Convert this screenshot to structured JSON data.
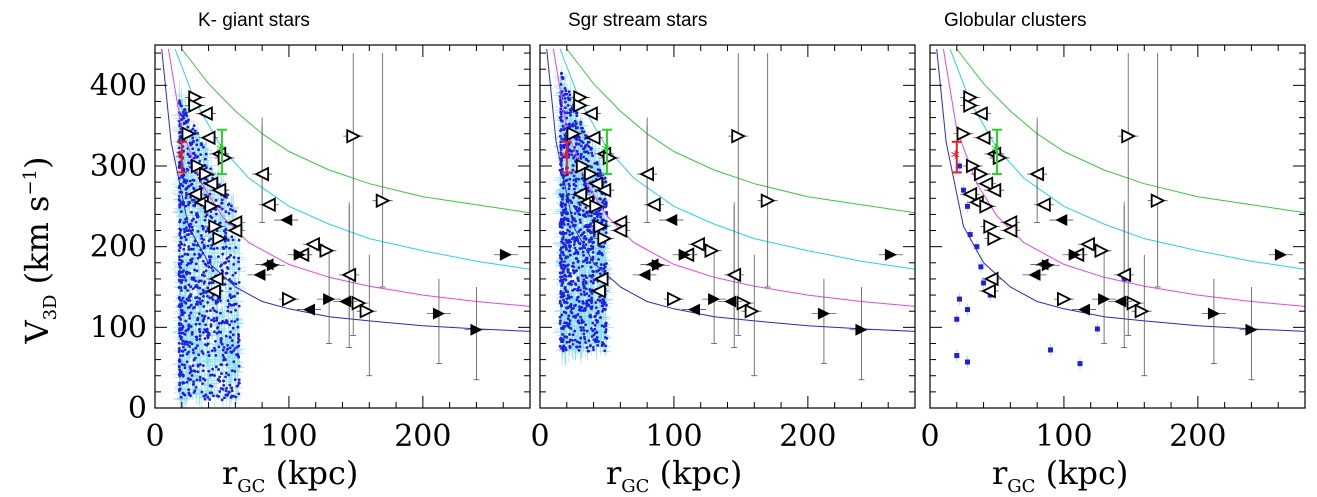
{
  "figure": {
    "ylabel_main": "V",
    "ylabel_sub": "3D",
    "ylabel_units": " (km s",
    "ylabel_exp": "−1",
    "ylabel_close": ")",
    "xlabel_main": "r",
    "xlabel_sub": "GC",
    "xlabel_units": " (kpc)"
  },
  "colors": {
    "curve_green": "#3cc83c",
    "curve_cyan": "#28d2e6",
    "curve_magenta": "#e646e6",
    "curve_blue": "#2828c8",
    "dot_blue": "#1e1ee6",
    "error_cyan": "#8cdceb",
    "marker_red": "#e61e28",
    "marker_green": "#28d228",
    "frame": "#000000"
  },
  "chart_data": [
    {
      "type": "scatter",
      "title": "K- giant stars",
      "xlabel": "r_GC (kpc)",
      "ylabel": "V_3D (km s^-1)",
      "xlim": [
        0,
        280
      ],
      "ylim": [
        0,
        450
      ],
      "xticks": [
        "0",
        "100",
        "200"
      ],
      "yticks": [
        "0",
        "100",
        "200",
        "300",
        "400"
      ],
      "grid": false,
      "scatter_cloud": "K-giant",
      "xticks_values": [
        0,
        100,
        200
      ],
      "yticks_values": [
        0,
        100,
        200,
        300,
        400
      ]
    },
    {
      "type": "scatter",
      "title": "Sgr stream stars",
      "xlabel": "r_GC (kpc)",
      "ylabel": "V_3D (km s^-1)",
      "xlim": [
        0,
        280
      ],
      "ylim": [
        0,
        450
      ],
      "xticks": [
        "0",
        "100",
        "200"
      ],
      "yticks": [
        "0",
        "100",
        "200",
        "300",
        "400"
      ],
      "grid": false,
      "scatter_cloud": "Sgr",
      "xticks_values": [
        0,
        100,
        200
      ],
      "yticks_values": [
        0,
        100,
        200,
        300,
        400
      ]
    },
    {
      "type": "scatter",
      "title": "Globular clusters",
      "xlabel": "r_GC (kpc)",
      "ylabel": "V_3D (km s^-1)",
      "xlim": [
        0,
        280
      ],
      "ylim": [
        0,
        450
      ],
      "xticks": [
        "0",
        "100",
        "200"
      ],
      "yticks": [
        "0",
        "100",
        "200",
        "300",
        "400"
      ],
      "grid": false,
      "scatter_cloud": "GC",
      "xticks_values": [
        0,
        100,
        200
      ],
      "yticks_values": [
        0,
        100,
        200,
        300,
        400
      ]
    }
  ],
  "shared_series": {
    "escape_curves": [
      {
        "color_key": "curve_green",
        "r": [
          20,
          40,
          60,
          80,
          100,
          130,
          160,
          200,
          240,
          280
        ],
        "v": [
          445,
          402,
          368,
          340,
          318,
          295,
          278,
          262,
          252,
          242
        ]
      },
      {
        "color_key": "curve_cyan",
        "r": [
          15,
          30,
          50,
          70,
          100,
          130,
          160,
          200,
          240,
          280
        ],
        "v": [
          445,
          380,
          322,
          285,
          250,
          228,
          210,
          195,
          182,
          172
        ]
      },
      {
        "color_key": "curve_magenta",
        "r": [
          10,
          20,
          35,
          50,
          70,
          100,
          130,
          160,
          200,
          240,
          280
        ],
        "v": [
          445,
          345,
          278,
          238,
          205,
          178,
          162,
          151,
          140,
          132,
          126
        ]
      },
      {
        "color_key": "curve_blue",
        "r": [
          5,
          12,
          25,
          40,
          60,
          80,
          100,
          130,
          160,
          200,
          240,
          280
        ],
        "v": [
          445,
          330,
          225,
          180,
          150,
          132,
          123,
          113,
          108,
          102,
          98,
          95
        ]
      }
    ],
    "red_point": {
      "r": 20,
      "v": 312,
      "err_low": 292,
      "err_high": 330
    },
    "green_point": {
      "r": 50,
      "v": 320,
      "err_low": 290,
      "err_high": 345
    },
    "open_markers": [
      {
        "r": 25,
        "v": 340,
        "dir": "right",
        "err": 0
      },
      {
        "r": 30,
        "v": 385,
        "dir": "right",
        "err": 0
      },
      {
        "r": 30,
        "v": 375,
        "dir": "right",
        "err": 0
      },
      {
        "r": 38,
        "v": 365,
        "dir": "left",
        "err": 0
      },
      {
        "r": 40,
        "v": 335,
        "dir": "left",
        "err": 0
      },
      {
        "r": 48,
        "v": 315,
        "dir": "left",
        "err": 0
      },
      {
        "r": 52,
        "v": 310,
        "dir": "right",
        "err": 0
      },
      {
        "r": 32,
        "v": 300,
        "dir": "right",
        "err": 0
      },
      {
        "r": 38,
        "v": 290,
        "dir": "right",
        "err": 0
      },
      {
        "r": 42,
        "v": 278,
        "dir": "left",
        "err": 0
      },
      {
        "r": 48,
        "v": 270,
        "dir": "left",
        "err": 0
      },
      {
        "r": 30,
        "v": 265,
        "dir": "left",
        "err": 0
      },
      {
        "r": 35,
        "v": 255,
        "dir": "left",
        "err": 0
      },
      {
        "r": 42,
        "v": 250,
        "dir": "right",
        "err": 0
      },
      {
        "r": 45,
        "v": 225,
        "dir": "right",
        "err": 0
      },
      {
        "r": 48,
        "v": 210,
        "dir": "right",
        "err": 0
      },
      {
        "r": 60,
        "v": 230,
        "dir": "left",
        "err": 0
      },
      {
        "r": 60,
        "v": 220,
        "dir": "left",
        "err": 0
      },
      {
        "r": 80,
        "v": 290,
        "dir": "left",
        "err": 60
      },
      {
        "r": 85,
        "v": 252,
        "dir": "left",
        "err": 0
      },
      {
        "r": 148,
        "v": 337,
        "dir": "right",
        "err": 0
      },
      {
        "r": 170,
        "v": 257,
        "dir": "right",
        "err": 0
      },
      {
        "r": 118,
        "v": 203,
        "dir": "left",
        "err": 0
      },
      {
        "r": 128,
        "v": 195,
        "dir": "right",
        "err": 0
      },
      {
        "r": 145,
        "v": 165,
        "dir": "left",
        "err": 90
      },
      {
        "r": 110,
        "v": 190,
        "dir": "left",
        "err": 0
      },
      {
        "r": 100,
        "v": 135,
        "dir": "right",
        "err": 0
      },
      {
        "r": 152,
        "v": 130,
        "dir": "right",
        "err": 0
      },
      {
        "r": 158,
        "v": 120,
        "dir": "right",
        "err": 0
      },
      {
        "r": 46,
        "v": 160,
        "dir": "left",
        "err": 0
      },
      {
        "r": 44,
        "v": 145,
        "dir": "left",
        "err": 0
      }
    ],
    "filled_markers": [
      {
        "r": 98,
        "v": 233,
        "dir": "left"
      },
      {
        "r": 108,
        "v": 190,
        "dir": "right"
      },
      {
        "r": 84,
        "v": 178,
        "dir": "left"
      },
      {
        "r": 88,
        "v": 177,
        "dir": "right"
      },
      {
        "r": 78,
        "v": 165,
        "dir": "left"
      },
      {
        "r": 115,
        "v": 122,
        "dir": "left"
      },
      {
        "r": 130,
        "v": 135,
        "dir": "right"
      },
      {
        "r": 142,
        "v": 132,
        "dir": "left"
      },
      {
        "r": 212,
        "v": 117,
        "dir": "right"
      },
      {
        "r": 240,
        "v": 97,
        "dir": "right"
      },
      {
        "r": 262,
        "v": 190,
        "dir": "right"
      }
    ],
    "error_bars": [
      {
        "r": 148,
        "lo": 90,
        "hi": 440
      },
      {
        "r": 170,
        "lo": 150,
        "hi": 440
      },
      {
        "r": 145,
        "lo": 75,
        "hi": 250
      },
      {
        "r": 80,
        "lo": 230,
        "hi": 360
      },
      {
        "r": 212,
        "lo": 55,
        "hi": 160
      },
      {
        "r": 240,
        "lo": 35,
        "hi": 150
      },
      {
        "r": 160,
        "lo": 40,
        "hi": 190
      },
      {
        "r": 130,
        "lo": 80,
        "hi": 195
      }
    ],
    "gc_blue_squares": [
      {
        "r": 22,
        "v": 300
      },
      {
        "r": 25,
        "v": 270
      },
      {
        "r": 28,
        "v": 250
      },
      {
        "r": 30,
        "v": 215
      },
      {
        "r": 35,
        "v": 200
      },
      {
        "r": 38,
        "v": 175
      },
      {
        "r": 40,
        "v": 155
      },
      {
        "r": 45,
        "v": 140
      },
      {
        "r": 22,
        "v": 135
      },
      {
        "r": 20,
        "v": 110
      },
      {
        "r": 28,
        "v": 122
      },
      {
        "r": 20,
        "v": 65
      },
      {
        "r": 28,
        "v": 57
      },
      {
        "r": 90,
        "v": 72
      },
      {
        "r": 112,
        "v": 55
      },
      {
        "r": 125,
        "v": 98
      },
      {
        "r": 145,
        "v": 160
      },
      {
        "r": 80,
        "v": 165
      },
      {
        "r": 38,
        "v": 290
      }
    ]
  }
}
